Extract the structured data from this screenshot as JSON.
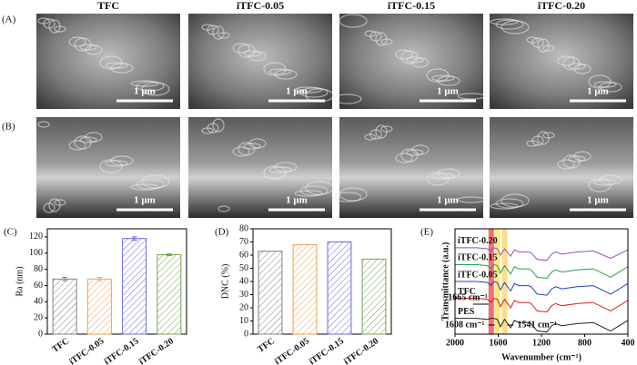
{
  "panel_labels": [
    "(A)",
    "(B)",
    "(C)",
    "(D)",
    "(E)"
  ],
  "columns": [
    "TFC",
    "iTFC-0.05",
    "iTFC-0.15",
    "iTFC-0.20"
  ],
  "scale_bar": "1 μm",
  "chart_data": [
    {
      "type": "bar",
      "ylabel": "Ra (nm)",
      "categories": [
        "TFC",
        "iTFC-0.05",
        "iTFC-0.15",
        "iTFC-0.20"
      ],
      "values": [
        68,
        68,
        118,
        98
      ],
      "errors": [
        2,
        2,
        2,
        1
      ],
      "colors": [
        "#808080",
        "#f0a050",
        "#6a6ad8",
        "#7aa050"
      ],
      "ylim": [
        0,
        130
      ],
      "yticks": [
        0,
        20,
        40,
        60,
        80,
        100,
        120
      ],
      "hatch": true
    },
    {
      "type": "bar",
      "ylabel": "DNC (%)",
      "categories": [
        "TFC",
        "iTFC-0.05",
        "iTFC-0.15",
        "iTFC-0.20"
      ],
      "values": [
        63,
        68,
        70,
        57
      ],
      "colors": [
        "#808080",
        "#f0a050",
        "#6a6ad8",
        "#7aa050"
      ],
      "ylim": [
        0,
        80
      ],
      "yticks": [
        0,
        10,
        20,
        30,
        40,
        50,
        60,
        70,
        80
      ],
      "hatch": true
    },
    {
      "type": "line",
      "xlabel": "Wavenumber (cm⁻¹)",
      "ylabel": "Transmittance (a.u.)",
      "x": [
        2000,
        1800,
        1700,
        1665,
        1640,
        1608,
        1580,
        1541,
        1485,
        1450,
        1410,
        1320,
        1295,
        1240,
        1150,
        1105,
        1070,
        1010,
        870,
        720,
        560,
        400
      ],
      "xlim": [
        2000,
        400
      ],
      "xticks": [
        2000,
        1600,
        1200,
        800,
        400
      ],
      "ylim": [
        0,
        100
      ],
      "series": [
        {
          "name": "PES",
          "color": "#222222",
          "values": [
            15,
            15,
            14,
            15,
            15,
            14,
            7,
            14,
            6,
            13,
            11,
            11,
            10,
            3,
            2,
            8,
            10,
            8,
            10,
            11,
            3,
            13
          ]
        },
        {
          "name": "TFC",
          "color": "#d02020",
          "values": [
            34,
            34,
            33,
            30,
            34,
            33,
            26,
            33,
            25,
            32,
            30,
            30,
            29,
            22,
            21,
            27,
            29,
            27,
            29,
            30,
            22,
            32
          ]
        },
        {
          "name": "iTFC-0.05",
          "color": "#2040c0",
          "values": [
            50,
            50,
            49,
            46,
            50,
            49,
            42,
            49,
            41,
            48,
            46,
            46,
            45,
            38,
            37,
            43,
            45,
            43,
            45,
            46,
            38,
            48
          ]
        },
        {
          "name": "iTFC-0.15",
          "color": "#20a050",
          "values": [
            66,
            66,
            65,
            62,
            66,
            65,
            58,
            65,
            57,
            64,
            62,
            62,
            61,
            54,
            53,
            59,
            61,
            59,
            61,
            62,
            54,
            64
          ]
        },
        {
          "name": "iTFC-0.20",
          "color": "#9050c0",
          "values": [
            82,
            82,
            81,
            79,
            82,
            81,
            75,
            81,
            74,
            80,
            78,
            78,
            77,
            71,
            70,
            76,
            78,
            76,
            78,
            79,
            72,
            80
          ]
        }
      ],
      "annotations": [
        {
          "label": "1665 cm⁻¹",
          "value": 1665,
          "color": "#f03030"
        },
        {
          "label": "1608 cm⁻¹",
          "value": 1608,
          "color": "#f8e040"
        },
        {
          "label": "1541 cm⁻¹",
          "value": 1541,
          "color": "#f8d060"
        }
      ]
    }
  ]
}
